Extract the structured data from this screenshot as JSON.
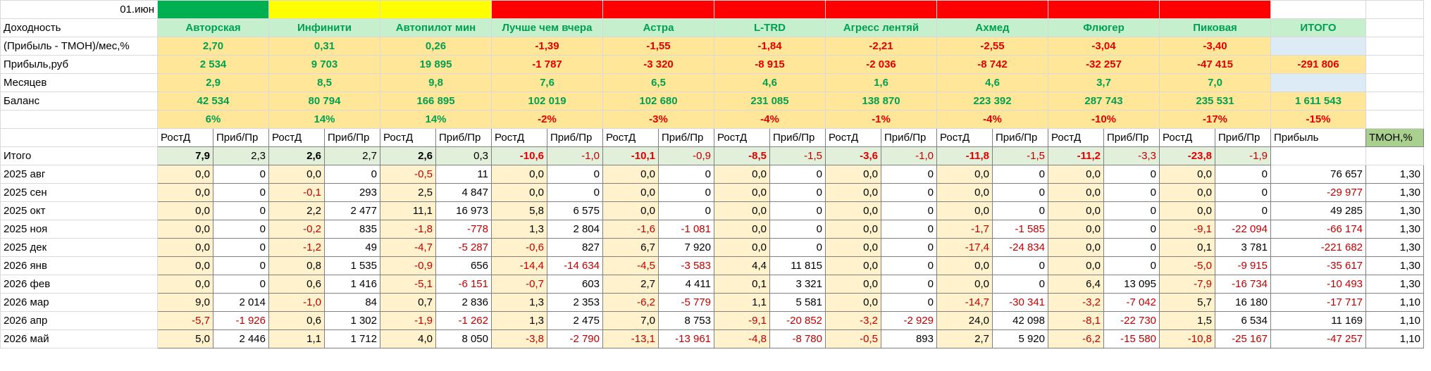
{
  "date": "01.июн",
  "row_labels": [
    "Доходность",
    "(Прибыль - ТМОН)/мес,%",
    "Прибыль,руб",
    "Месяцев",
    "Баланс"
  ],
  "strategies": [
    {
      "name": "Авторская",
      "color": "#00b050",
      "tmon": "2,70",
      "profit": "2 534",
      "months": "2,9",
      "balance": "42 534",
      "share": "6%",
      "total_rost": "7,9",
      "total_prib": "2,3"
    },
    {
      "name": "Инфинити",
      "color": "#ffff00",
      "tmon": "0,31",
      "profit": "9 703",
      "months": "8,5",
      "balance": "80 794",
      "share": "14%",
      "total_rost": "2,6",
      "total_prib": "2,7"
    },
    {
      "name": "Автопилот мин",
      "color": "#ffff00",
      "tmon": "0,26",
      "profit": "19 895",
      "months": "9,8",
      "balance": "166 895",
      "share": "14%",
      "total_rost": "2,6",
      "total_prib": "0,3"
    },
    {
      "name": "Лучше чем вчера",
      "color": "#ff0000",
      "tmon": "-1,39",
      "profit": "-1 787",
      "months": "7,6",
      "balance": "102 019",
      "share": "-2%",
      "total_rost": "-10,6",
      "total_prib": "-1,0"
    },
    {
      "name": "Астра",
      "color": "#ff0000",
      "tmon": "-1,55",
      "profit": "-3 320",
      "months": "6,5",
      "balance": "102 680",
      "share": "-3%",
      "total_rost": "-10,1",
      "total_prib": "-0,9"
    },
    {
      "name": "L-TRD",
      "color": "#ff0000",
      "tmon": "-1,84",
      "profit": "-8 915",
      "months": "4,6",
      "balance": "231 085",
      "share": "-4%",
      "total_rost": "-8,5",
      "total_prib": "-1,5"
    },
    {
      "name": "Агресс лентяй",
      "color": "#ff0000",
      "tmon": "-2,21",
      "profit": "-2 036",
      "months": "1,6",
      "balance": "138 870",
      "share": "-1%",
      "total_rost": "-3,6",
      "total_prib": "-1,0"
    },
    {
      "name": "Ахмед",
      "color": "#ff0000",
      "tmon": "-2,55",
      "profit": "-8 742",
      "months": "4,6",
      "balance": "223 392",
      "share": "-4%",
      "total_rost": "-11,8",
      "total_prib": "-1,5"
    },
    {
      "name": "Флюгер",
      "color": "#ff0000",
      "tmon": "-3,04",
      "profit": "-32 257",
      "months": "3,7",
      "balance": "287 743",
      "share": "-10%",
      "total_rost": "-11,2",
      "total_prib": "-3,3"
    },
    {
      "name": "Пиковая",
      "color": "#ff0000",
      "tmon": "-3,40",
      "profit": "-47 415",
      "months": "7,0",
      "balance": "235 531",
      "share": "-17%",
      "total_rost": "-23,8",
      "total_prib": "-1,9"
    }
  ],
  "total": {
    "name": "ИТОГО",
    "profit": "-291 806",
    "balance": "1 611 543",
    "share": "-15%"
  },
  "subheaders": [
    "РостД",
    "Приб/Пр",
    "РостД",
    "Приб/Пр",
    "РостД",
    "Приб/Пр",
    "РостД",
    "Приб/Пр",
    "РостД",
    "Приб/Пр",
    "РостД",
    "Приб/Пр",
    "РостД",
    "Приб/Пр",
    "РостД",
    "Приб/Пр",
    "РостД",
    "Приб/Пр",
    "РостД",
    "Приб/Пр",
    "Прибыль",
    "ТМОН,%"
  ],
  "total_row_label": "Итого",
  "months": [
    {
      "label": "2025 авг",
      "cells": [
        "0,0",
        "0",
        "0,0",
        "0",
        "-0,5",
        "11",
        "0,0",
        "0",
        "0,0",
        "0",
        "0,0",
        "0",
        "0,0",
        "0",
        "0,0",
        "0",
        "0,0",
        "0",
        "0,0",
        "0"
      ],
      "profit": "76 657",
      "tmon": "1,30"
    },
    {
      "label": "2025 сен",
      "cells": [
        "0,0",
        "0",
        "-0,1",
        "293",
        "2,5",
        "4 847",
        "0,0",
        "0",
        "0,0",
        "0",
        "0,0",
        "0",
        "0,0",
        "0",
        "0,0",
        "0",
        "0,0",
        "0",
        "0,0",
        "0"
      ],
      "profit": "-29 977",
      "tmon": "1,30"
    },
    {
      "label": "2025 окт",
      "cells": [
        "0,0",
        "0",
        "2,2",
        "2 477",
        "11,1",
        "16 973",
        "5,8",
        "6 575",
        "0,0",
        "0",
        "0,0",
        "0",
        "0,0",
        "0",
        "0,0",
        "0",
        "0,0",
        "0",
        "0,0",
        "0"
      ],
      "profit": "49 285",
      "tmon": "1,30"
    },
    {
      "label": "2025 ноя",
      "cells": [
        "0,0",
        "0",
        "-0,2",
        "835",
        "-1,8",
        "-778",
        "1,3",
        "2 804",
        "-1,6",
        "-1 081",
        "0,0",
        "0",
        "0,0",
        "0",
        "-1,7",
        "-1 585",
        "0,0",
        "0",
        "-9,1",
        "-22 094"
      ],
      "profit": "-66 174",
      "tmon": "1,30"
    },
    {
      "label": "2025 дек",
      "cells": [
        "0,0",
        "0",
        "-1,2",
        "49",
        "-4,7",
        "-5 287",
        "-0,6",
        "827",
        "6,7",
        "7 920",
        "0,0",
        "0",
        "0,0",
        "0",
        "-17,4",
        "-24 834",
        "0,0",
        "0",
        "0,1",
        "3 781"
      ],
      "profit": "-221 682",
      "tmon": "1,30"
    },
    {
      "label": "2026 янв",
      "cells": [
        "0,0",
        "0",
        "0,8",
        "1 535",
        "-0,9",
        "656",
        "-14,4",
        "-14 634",
        "-4,5",
        "-3 583",
        "4,4",
        "11 815",
        "0,0",
        "0",
        "0,0",
        "0",
        "0,0",
        "0",
        "-5,0",
        "-9 915"
      ],
      "profit": "-35 617",
      "tmon": "1,30"
    },
    {
      "label": "2026 фев",
      "cells": [
        "0,0",
        "0",
        "0,6",
        "1 416",
        "-5,1",
        "-6 151",
        "-0,7",
        "603",
        "2,7",
        "4 411",
        "0,1",
        "3 321",
        "0,0",
        "0",
        "0,0",
        "0",
        "6,4",
        "13 095",
        "-7,9",
        "-16 734"
      ],
      "profit": "-10 493",
      "tmon": "1,30"
    },
    {
      "label": "2026 мар",
      "cells": [
        "9,0",
        "2 014",
        "-1,0",
        "84",
        "0,7",
        "2 836",
        "1,3",
        "2 353",
        "-6,2",
        "-5 779",
        "1,1",
        "5 581",
        "0,0",
        "0",
        "-14,7",
        "-30 341",
        "-3,2",
        "-7 042",
        "5,7",
        "16 180"
      ],
      "profit": "-17 717",
      "tmon": "1,10"
    },
    {
      "label": "2026 апр",
      "cells": [
        "-5,7",
        "-1 926",
        "0,6",
        "1 302",
        "-1,9",
        "-1 262",
        "1,3",
        "2 475",
        "7,0",
        "8 753",
        "-9,1",
        "-20 852",
        "-3,2",
        "-2 929",
        "24,0",
        "42 098",
        "-8,1",
        "-22 730",
        "1,5",
        "6 534"
      ],
      "profit": "11 169",
      "tmon": "1,10"
    },
    {
      "label": "2026 май",
      "cells": [
        "5,0",
        "2 446",
        "1,1",
        "1 712",
        "4,0",
        "8 050",
        "-3,8",
        "-2 790",
        "-13,1",
        "-13 961",
        "-4,8",
        "-8 780",
        "-0,5",
        "893",
        "2,7",
        "5 920",
        "-6,2",
        "-15 580",
        "-10,8",
        "-25 167"
      ],
      "profit": "-47 257",
      "tmon": "1,10"
    }
  ]
}
